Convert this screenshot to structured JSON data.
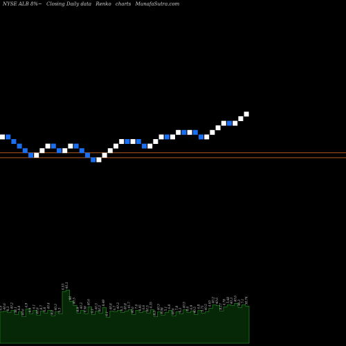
{
  "header": {
    "symbol": "NYSE ALB 8%~",
    "description": "Closing Daily data",
    "chart_kind": "Renko",
    "charts_word": "charts",
    "site": "MunafaSutra.com"
  },
  "colors": {
    "background": "#000000",
    "up_brick": "#ffffff",
    "down_brick": "#1a6ff0",
    "level_lines": "#b5581f",
    "volume_fill": "#062806",
    "volume_edge": "#1f7a1f",
    "volume_label": "#cfcfcf"
  },
  "chart_data": [
    {
      "type": "renko",
      "brick_size": 1,
      "directions": [
        "up",
        "down",
        "down",
        "down",
        "down",
        "down",
        "up",
        "up",
        "up",
        "down",
        "down",
        "up",
        "up",
        "down",
        "down",
        "down",
        "down",
        "up",
        "up",
        "up",
        "up",
        "up",
        "down",
        "up",
        "down",
        "down",
        "up",
        "up",
        "up",
        "down",
        "up",
        "up",
        "down",
        "up",
        "down",
        "down",
        "up",
        "up",
        "up",
        "up",
        "down",
        "up",
        "up",
        "up"
      ],
      "start_level": 0,
      "reference_levels": [
        -3,
        -4
      ],
      "grid": false
    },
    {
      "type": "bar",
      "name_role": "volume",
      "values": [
        45,
        46,
        44,
        47,
        41,
        45,
        38,
        49,
        42,
        47,
        40,
        46,
        43,
        47,
        39,
        45,
        42,
        74,
        76,
        60,
        54,
        43,
        47,
        42,
        52,
        41,
        46,
        43,
        51,
        37,
        46,
        45,
        47,
        44,
        46,
        48,
        41,
        47,
        44,
        46,
        43,
        48,
        38,
        45,
        40,
        44,
        47,
        39,
        45,
        42,
        48,
        44,
        46,
        41,
        47,
        43,
        45,
        50,
        55,
        54,
        46,
        52,
        55,
        54,
        57,
        51,
        55,
        53
      ],
      "labels": [
        "6.9",
        "40.6",
        "8.3",
        "40.2",
        "38.1",
        "8.8",
        "40.6",
        "4.9",
        "8.9",
        "6.1",
        "40.6",
        "8.7",
        "6.8",
        "40.4",
        "8.2",
        "40.3",
        "6.3",
        "4.53",
        "40.3",
        "86",
        "40.5",
        "8.9",
        "40.3",
        "4.58",
        "40.6",
        "6.1",
        "40.3",
        "40.3",
        "8.49",
        "6.1",
        "40.8",
        "6.7",
        "40.3",
        "6.3",
        "40.8",
        "41.7",
        "40.6",
        "7.6",
        "4.95",
        "6.6",
        "40.5",
        "4.35",
        "8.3",
        "40.3",
        "8.08",
        "5.1",
        "6.8",
        "40.6",
        "7.8",
        "6.3",
        "40.5",
        "8.6",
        "6.9",
        "40.5",
        "6.8",
        "5.71",
        "40.5",
        "4.65",
        "40.2",
        "40.6",
        "8.17",
        "4.78",
        "5.68",
        "40.3",
        "40.6",
        "38.3",
        "7.1",
        "38.74"
      ],
      "ylim": [
        0,
        90
      ]
    }
  ]
}
